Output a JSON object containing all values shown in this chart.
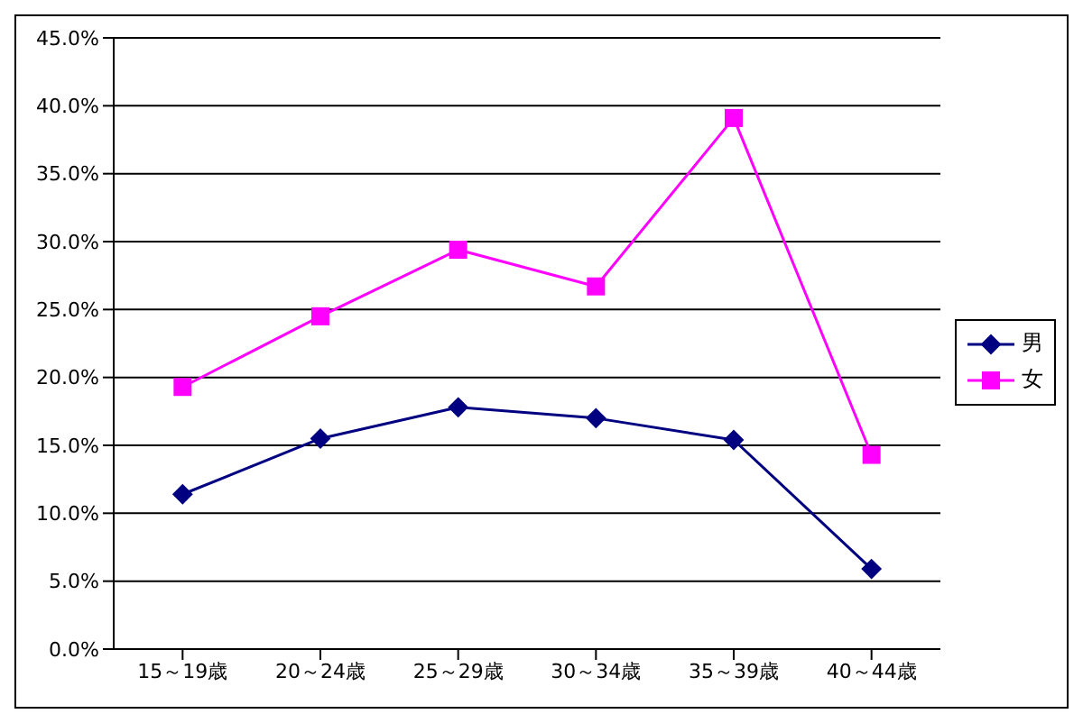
{
  "chart_data": {
    "type": "line",
    "categories": [
      "15～19歳",
      "20～24歳",
      "25～29歳",
      "30～34歳",
      "35～39歳",
      "40～44歳"
    ],
    "series": [
      {
        "name": "男",
        "color": "#000080",
        "marker": "diamond",
        "values": [
          11.4,
          15.5,
          17.8,
          17.0,
          15.4,
          5.9
        ]
      },
      {
        "name": "女",
        "color": "#ff00ff",
        "marker": "square",
        "values": [
          19.3,
          24.5,
          29.4,
          26.7,
          39.1,
          14.3
        ]
      }
    ],
    "ylim": [
      0,
      45
    ],
    "yticks": [
      {
        "value": 0,
        "label": "0.0%"
      },
      {
        "value": 5,
        "label": "5.0%"
      },
      {
        "value": 10,
        "label": "10.0%"
      },
      {
        "value": 15,
        "label": "15.0%"
      },
      {
        "value": 20,
        "label": "20.0%"
      },
      {
        "value": 25,
        "label": "25.0%"
      },
      {
        "value": 30,
        "label": "30.0%"
      },
      {
        "value": 35,
        "label": "35.0%"
      },
      {
        "value": 40,
        "label": "40.0%"
      },
      {
        "value": 45,
        "label": "45.0%"
      }
    ],
    "grid": "y",
    "legend": "right",
    "line_style": "solid"
  }
}
